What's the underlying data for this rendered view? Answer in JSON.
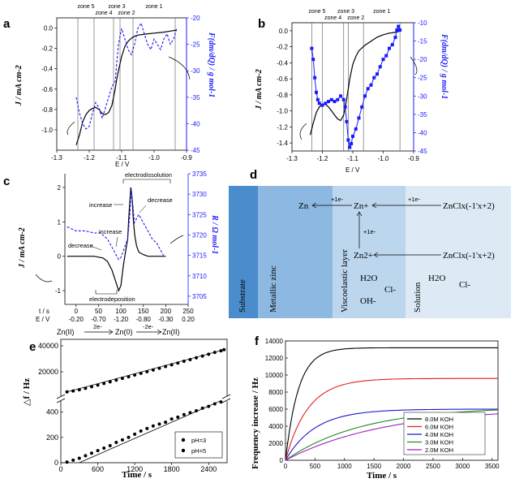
{
  "chart_data": [
    {
      "panel": "a",
      "type": "line",
      "xlabel": "E / V",
      "ylabel_left": "J / mA cm-2",
      "ylabel_right": "F(dm/dQ) / g mol-1",
      "xlim": [
        -1.3,
        -0.9
      ],
      "ylim_left": [
        -1.2,
        0.1
      ],
      "ylim_right": [
        -45,
        -20
      ],
      "x_ticks": [
        "-1.3",
        "-1.2",
        "-1.1",
        "-1.0",
        "-0.9"
      ],
      "y_left_ticks": [
        "0.0",
        "-0.2",
        "-0.4",
        "-0.6",
        "-0.8",
        "-1.0"
      ],
      "y_right_ticks": [
        "-20",
        "-25",
        "-30",
        "-35",
        "-40",
        "-45"
      ],
      "zones": [
        "zone 5",
        "zone 4",
        "zone 3",
        "zone 2",
        "zone 1"
      ],
      "zone_boundaries": [
        -1.235,
        -1.185,
        -1.125,
        -1.105,
        -1.065,
        -0.935
      ],
      "series": [
        {
          "axis": "left",
          "style": "solid-black",
          "x": [
            -1.24,
            -1.23,
            -1.22,
            -1.21,
            -1.2,
            -1.19,
            -1.18,
            -1.17,
            -1.16,
            -1.15,
            -1.14,
            -1.13,
            -1.12,
            -1.115,
            -1.11,
            -1.1,
            -1.09,
            -1.08,
            -1.07,
            -1.06,
            -1.05,
            -1.03,
            -1.0,
            -0.97,
            -0.95,
            -0.93
          ],
          "y": [
            -1.15,
            -1.05,
            -0.92,
            -0.85,
            -0.81,
            -0.79,
            -0.78,
            -0.8,
            -0.84,
            -0.85,
            -0.83,
            -0.76,
            -0.6,
            -0.5,
            -0.42,
            -0.28,
            -0.18,
            -0.13,
            -0.1,
            -0.08,
            -0.07,
            -0.06,
            -0.05,
            -0.04,
            -0.03,
            -0.02
          ]
        },
        {
          "axis": "right",
          "style": "dashed-blue",
          "x": [
            -1.24,
            -1.23,
            -1.22,
            -1.21,
            -1.2,
            -1.19,
            -1.18,
            -1.17,
            -1.16,
            -1.15,
            -1.14,
            -1.13,
            -1.12,
            -1.11,
            -1.1,
            -1.09,
            -1.08,
            -1.07,
            -1.06,
            -1.05,
            -1.04,
            -1.03,
            -1.02,
            -1.01,
            -1.0,
            -0.99,
            -0.98,
            -0.97,
            -0.96,
            -0.95,
            -0.94,
            -0.93
          ],
          "y": [
            -35,
            -38,
            -40,
            -41,
            -40.5,
            -38,
            -36,
            -37,
            -39,
            -37,
            -35,
            -33,
            -32,
            -25,
            -22,
            -24,
            -26,
            -27,
            -25,
            -22,
            -21,
            -23,
            -25,
            -26,
            -24,
            -25,
            -26,
            -24,
            -23,
            -25,
            -24,
            -22
          ]
        }
      ]
    },
    {
      "panel": "b",
      "type": "line",
      "xlabel": "E / V",
      "ylabel_left": "J / mA cm-2",
      "ylabel_right": "F(dm/dQ) / g mol-1",
      "xlim": [
        -1.3,
        -0.9
      ],
      "ylim_left": [
        -1.5,
        0.1
      ],
      "ylim_right": [
        -45,
        -10
      ],
      "x_ticks": [
        "-1.3",
        "-1.2",
        "-1.1",
        "-1.0",
        "-0.9"
      ],
      "y_left_ticks": [
        "0.0",
        "-0.2",
        "-0.4",
        "-0.6",
        "-0.8",
        "-1.0",
        "-1.2",
        "-1.4"
      ],
      "y_right_ticks": [
        "-10",
        "-15",
        "-20",
        "-25",
        "-30",
        "-35",
        "-40",
        "-45"
      ],
      "zones": [
        "zone 5",
        "zone 4",
        "zone 3",
        "zone 2",
        "zone 1"
      ],
      "zone_boundaries": [
        -1.235,
        -1.2,
        -1.13,
        -1.115,
        -1.065,
        -0.945
      ],
      "series": [
        {
          "axis": "left",
          "style": "solid-black",
          "x": [
            -1.24,
            -1.23,
            -1.22,
            -1.21,
            -1.2,
            -1.19,
            -1.18,
            -1.17,
            -1.16,
            -1.15,
            -1.14,
            -1.13,
            -1.12,
            -1.11,
            -1.1,
            -1.09,
            -1.08,
            -1.06,
            -1.04,
            -1.02,
            -1.0,
            -0.98,
            -0.96,
            -0.95,
            -0.94
          ],
          "y": [
            -1.3,
            -1.15,
            -1.02,
            -0.95,
            -0.92,
            -0.92,
            -0.95,
            -1.0,
            -1.05,
            -1.1,
            -1.12,
            -1.05,
            -0.85,
            -0.6,
            -0.42,
            -0.32,
            -0.25,
            -0.18,
            -0.13,
            -0.08,
            -0.05,
            -0.03,
            -0.02,
            -0.01,
            0.0
          ]
        },
        {
          "axis": "right",
          "style": "blue-markers",
          "x": [
            -1.235,
            -1.23,
            -1.225,
            -1.22,
            -1.215,
            -1.21,
            -1.2,
            -1.19,
            -1.18,
            -1.17,
            -1.16,
            -1.15,
            -1.14,
            -1.13,
            -1.125,
            -1.12,
            -1.115,
            -1.11,
            -1.105,
            -1.1,
            -1.09,
            -1.08,
            -1.07,
            -1.06,
            -1.05,
            -1.04,
            -1.03,
            -1.02,
            -1.01,
            -1.0,
            -0.99,
            -0.98,
            -0.97,
            -0.96,
            -0.955,
            -0.95,
            -0.945
          ],
          "y": [
            -17,
            -20,
            -25,
            -29,
            -31,
            -32,
            -32.5,
            -32,
            -31.5,
            -31,
            -31.5,
            -31,
            -30,
            -31,
            -33,
            -37,
            -42,
            -44,
            -43,
            -41,
            -39,
            -36,
            -33,
            -30,
            -28,
            -27,
            -25,
            -24,
            -22,
            -20,
            -19,
            -17,
            -16,
            -14,
            -12,
            -11,
            -12
          ]
        }
      ]
    },
    {
      "panel": "c",
      "type": "line",
      "xlabel_rows": [
        "t / s",
        "E / V"
      ],
      "ylabel_left": "J / mA cm-2",
      "ylabel_right": "R / Ω mol-1",
      "xlim": [
        -25,
        250
      ],
      "ylim_left": [
        -1.4,
        2.4
      ],
      "ylim_right": [
        3703,
        3735
      ],
      "x_ticks_t": [
        "0",
        "50",
        "100",
        "150",
        "200",
        "250"
      ],
      "x_ticks_e": [
        "-0.20",
        "-0.70",
        "-1.20",
        "-0.80",
        "-0.30",
        "0.20"
      ],
      "y_left_ticks": [
        "2",
        "1",
        "0",
        "-1"
      ],
      "y_right_ticks": [
        "3735",
        "3730",
        "3725",
        "3720",
        "3715",
        "3710",
        "3705"
      ],
      "annotations": [
        "electrodissolution",
        "increase",
        "decrease",
        "increase",
        "decrease",
        "electrodeposition"
      ],
      "scheme": {
        "species": [
          "Zn(II)",
          "Zn(0)",
          "Zn(II)"
        ],
        "arrows": [
          "2e-",
          "-2e-"
        ]
      },
      "series": [
        {
          "axis": "left",
          "style": "solid-black",
          "x": [
            -20,
            40,
            60,
            70,
            80,
            85,
            90,
            95,
            100,
            105,
            110,
            115,
            118,
            122,
            125,
            128,
            131,
            135,
            140,
            150,
            160,
            200
          ],
          "y": [
            0,
            0,
            -0.05,
            -0.15,
            -0.4,
            -0.6,
            -0.8,
            -1.0,
            -0.85,
            -0.3,
            0.1,
            0.5,
            1.2,
            2.0,
            1.7,
            1.0,
            0.6,
            0.3,
            0.12,
            0.05,
            0.0,
            0.0
          ]
        },
        {
          "axis": "right",
          "style": "dashed-blue",
          "x": [
            -20,
            0,
            20,
            40,
            55,
            70,
            85,
            95,
            100,
            105,
            110,
            115,
            120,
            123,
            127,
            130,
            135,
            140,
            150,
            160,
            170,
            180,
            190,
            195
          ],
          "y": [
            3722,
            3721,
            3721,
            3720.5,
            3720.5,
            3719,
            3716,
            3714,
            3714.5,
            3716,
            3717.5,
            3719,
            3725,
            3731,
            3727,
            3723,
            3724,
            3725,
            3723,
            3721,
            3719,
            3718,
            3716,
            3715
          ]
        }
      ]
    },
    {
      "panel": "d",
      "type": "diagram",
      "layers": [
        "Substrate",
        "Metallic zinc",
        "Viscoelastic layer",
        "Solution"
      ],
      "species": [
        "Zn",
        "Zn+",
        "Zn2+",
        "ZnClx(-1'x+2)",
        "ZnClx(-1'x+2)",
        "H2O",
        "Cl-",
        "OH-",
        "H2O",
        "Cl-"
      ],
      "arrow_labels": [
        "+1e-",
        "+1e-",
        "+1e-"
      ]
    },
    {
      "panel": "e",
      "type": "scatter",
      "xlabel": "Time / s",
      "ylabel": "△f / Hz",
      "xlim": [
        0,
        2700
      ],
      "x_ticks": [
        "0",
        "600",
        "1200",
        "1800",
        "2400"
      ],
      "ylim_upper": [
        0,
        45000
      ],
      "y_upper_ticks": [
        "20000",
        "40000"
      ],
      "ylim_lower": [
        0,
        500
      ],
      "y_lower_ticks": [
        "0",
        "200",
        "400"
      ],
      "legend": [
        "pH=3",
        "pH=5"
      ],
      "series": [
        {
          "name": "pH=3",
          "segment": "upper",
          "x": [
            100,
            200,
            300,
            400,
            500,
            600,
            700,
            800,
            900,
            1000,
            1100,
            1200,
            1300,
            1400,
            1500,
            1600,
            1700,
            1800,
            1900,
            2000,
            2100,
            2200,
            2300,
            2400,
            2500,
            2600,
            2650
          ],
          "y": [
            4500,
            5200,
            6200,
            7300,
            8500,
            9800,
            11000,
            12300,
            13600,
            14900,
            16200,
            17500,
            18800,
            20100,
            21400,
            22700,
            24100,
            25400,
            26700,
            28100,
            29400,
            30800,
            32100,
            33500,
            34900,
            36200,
            37000
          ]
        },
        {
          "name": "pH=5",
          "segment": "lower",
          "x": [
            100,
            200,
            300,
            400,
            500,
            600,
            700,
            800,
            900,
            1000,
            1100,
            1200,
            1300,
            1400,
            1500,
            1600,
            1700,
            1800,
            1900,
            2000,
            2100,
            2200,
            2300,
            2400,
            2500,
            2600
          ],
          "y": [
            5,
            20,
            35,
            55,
            75,
            95,
            115,
            135,
            160,
            180,
            200,
            225,
            250,
            270,
            290,
            305,
            320,
            345,
            360,
            380,
            395,
            410,
            430,
            445,
            465,
            480
          ]
        }
      ]
    },
    {
      "panel": "f",
      "type": "line",
      "xlabel": "Time / s",
      "ylabel": "Frequency increase / Hz",
      "xlim": [
        0,
        3600
      ],
      "ylim": [
        0,
        14000
      ],
      "x_ticks": [
        "0",
        "500",
        "1000",
        "1500",
        "2000",
        "2500",
        "3000",
        "3500"
      ],
      "y_ticks": [
        "0",
        "2000",
        "4000",
        "6000",
        "8000",
        "10000",
        "12000",
        "14000"
      ],
      "legend_position": "bottom-right",
      "series": [
        {
          "name": "8.0M KOH",
          "color": "#000000",
          "plateau": 13200,
          "rate": 220
        },
        {
          "name": "6.0M KOH",
          "color": "#e02020",
          "plateau": 9600,
          "rate": 380
        },
        {
          "name": "4.0M KOH",
          "color": "#1a1acc",
          "plateau": 6000,
          "rate": 500
        },
        {
          "name": "3.0M KOH",
          "color": "#228b22",
          "plateau": 6300,
          "rate": 1300
        },
        {
          "name": "2.0M KOH",
          "color": "#a020c0",
          "plateau": 6200,
          "rate": 1700
        }
      ]
    }
  ],
  "panel_letters": [
    "a",
    "b",
    "c",
    "d",
    "e",
    "f"
  ],
  "colors": {
    "blue": "#1a1aff",
    "substrate": "#4a8ccc",
    "zinc": "#8cb8e2",
    "visco": "#bcd6ee",
    "solution": "#dde9f5"
  }
}
